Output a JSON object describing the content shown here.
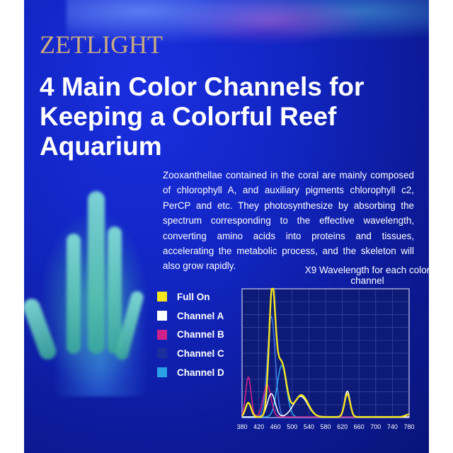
{
  "brand": "ZETLIGHT",
  "title": "4 Main Color Channels for Keeping a Colorful Reef Aquarium",
  "description": "Zooxanthellae contained in the coral are mainly composed of chlorophyll A, and auxiliary pigments chlorophyll c2, PerCP and etc. They photosynthesize by absorbing the spectrum corresponding to the effective wavelength, converting amino acids into proteins and tissues, accelerating the metabolic process, and the skeleton will also grow rapidly.",
  "legend": [
    {
      "label": "Full On",
      "color": "#f5e61e"
    },
    {
      "label": "Channel A",
      "color": "#ffffff"
    },
    {
      "label": "Channel B",
      "color": "#d0208a"
    },
    {
      "label": "Channel C",
      "color": "#1c2e9c"
    },
    {
      "label": "Channel D",
      "color": "#2aa0e6"
    }
  ],
  "chart_data": {
    "type": "line",
    "title": "X9 Wavelength for each color channel",
    "xlabel": "",
    "ylabel": "",
    "xlim": [
      380,
      780
    ],
    "ylim": [
      0,
      1
    ],
    "xticks": [
      380,
      420,
      460,
      500,
      540,
      580,
      620,
      660,
      700,
      740,
      780
    ],
    "grid": true,
    "background": "#0d1a78",
    "series": [
      {
        "name": "Channel C",
        "color": "#3c6fe0",
        "peaks": [
          {
            "nm": 450,
            "relative_intensity": 0.78,
            "fwhm_nm": 22
          }
        ]
      },
      {
        "name": "Channel D",
        "color": "#2aa0e6",
        "peaks": [
          {
            "nm": 475,
            "relative_intensity": 0.4,
            "fwhm_nm": 26
          }
        ]
      },
      {
        "name": "Channel B",
        "color": "#d0208a",
        "peaks": [
          {
            "nm": 395,
            "relative_intensity": 0.31,
            "fwhm_nm": 15
          },
          {
            "nm": 440,
            "relative_intensity": 0.25,
            "fwhm_nm": 22
          }
        ]
      },
      {
        "name": "Channel A",
        "color": "#ffffff",
        "peaks": [
          {
            "nm": 450,
            "relative_intensity": 0.18,
            "fwhm_nm": 22
          },
          {
            "nm": 520,
            "relative_intensity": 0.16,
            "fwhm_nm": 40
          },
          {
            "nm": 632,
            "relative_intensity": 0.2,
            "fwhm_nm": 16
          }
        ]
      },
      {
        "name": "Full On",
        "color": "#f5e61e",
        "peaks": [
          {
            "nm": 395,
            "relative_intensity": 0.11,
            "fwhm_nm": 16
          },
          {
            "nm": 452,
            "relative_intensity": 0.95,
            "fwhm_nm": 18
          },
          {
            "nm": 474,
            "relative_intensity": 0.42,
            "fwhm_nm": 28
          },
          {
            "nm": 522,
            "relative_intensity": 0.17,
            "fwhm_nm": 38
          },
          {
            "nm": 632,
            "relative_intensity": 0.18,
            "fwhm_nm": 16
          },
          {
            "nm": 780,
            "relative_intensity": 0.02,
            "fwhm_nm": 20
          }
        ]
      }
    ]
  }
}
